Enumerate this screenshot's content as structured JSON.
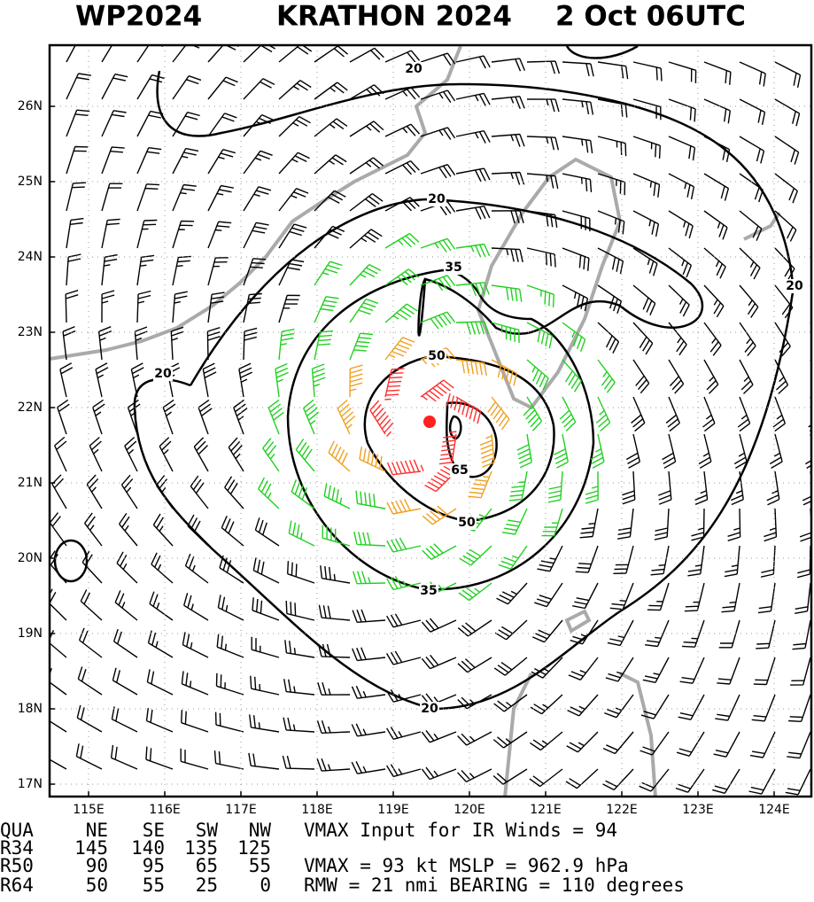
{
  "header": {
    "basin": "WP2024",
    "storm": "KRATHON 2024",
    "time": "2 Oct 06UTC"
  },
  "map": {
    "lat_labels": [
      "26N",
      "25N",
      "24N",
      "23N",
      "22N",
      "21N",
      "20N",
      "19N",
      "18N",
      "17N"
    ],
    "lon_labels": [
      "115E",
      "116E",
      "117E",
      "118E",
      "119E",
      "120E",
      "121E",
      "122E",
      "123E",
      "124E"
    ],
    "contour_labels": [
      "20",
      "20",
      "20",
      "20",
      "20",
      "35",
      "35",
      "50",
      "50",
      "65"
    ]
  },
  "table": {
    "header": [
      "QUA",
      "NE",
      "SE",
      "SW",
      "NW"
    ],
    "rows": [
      [
        "R34",
        "145",
        "140",
        "135",
        "125"
      ],
      [
        "R50",
        "90",
        "95",
        "65",
        "55"
      ],
      [
        "R64",
        "50",
        "55",
        "25",
        "0"
      ]
    ]
  },
  "info": [
    "VMAX Input for IR Winds =   94",
    "VMAX =    93 kt MSLP =  962.9 hPa",
    "RMW  =  21 nmi BEARING =  110 degrees"
  ]
}
